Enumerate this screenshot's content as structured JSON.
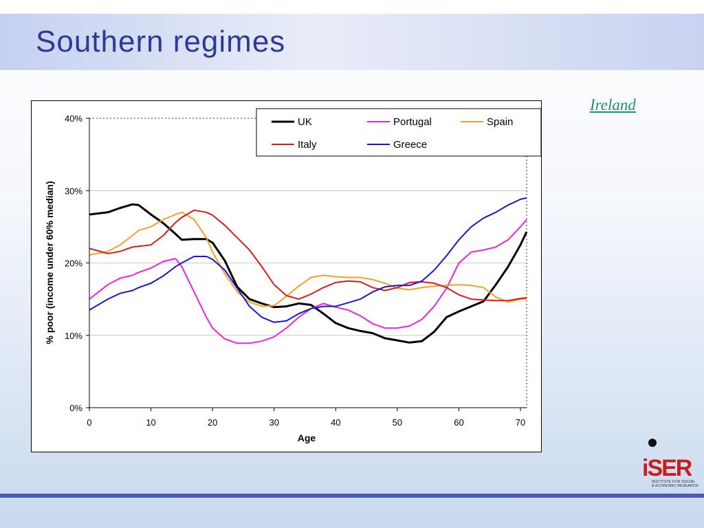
{
  "slide": {
    "title": "Southern regimes",
    "link_label": "Ireland"
  },
  "colors": {
    "UK": "#000000",
    "Portugal": "#ee22dd",
    "Spain": "#f5a020",
    "Italy": "#e01818",
    "Greece": "#1818c8"
  },
  "logo": {
    "wordmark": "iSER",
    "caption1": "INSTITUTE FOR SOCIAL",
    "caption2": "& ECONOMIC RESEARCH"
  },
  "chart_data": {
    "type": "line",
    "xlabel": "Age",
    "ylabel": "% poor (income under 60% median)",
    "xlim": [
      0,
      71
    ],
    "ylim": [
      0,
      40
    ],
    "x_ticks": [
      0,
      10,
      20,
      30,
      40,
      50,
      60,
      70
    ],
    "y_ticks": [
      0,
      10,
      20,
      30,
      40
    ],
    "y_tick_labels": [
      "0%",
      "10%",
      "20%",
      "30%",
      "40%"
    ],
    "grid": "horizontal",
    "legend_position": "top-right",
    "x": [
      0,
      3,
      5,
      7,
      8,
      10,
      12,
      14,
      15,
      17,
      19,
      20,
      22,
      24,
      26,
      28,
      30,
      32,
      34,
      36,
      38,
      40,
      42,
      44,
      46,
      48,
      50,
      52,
      54,
      56,
      58,
      60,
      62,
      64,
      66,
      68,
      70,
      71
    ],
    "series": [
      {
        "name": "UK",
        "values": [
          26.7,
          27.0,
          27.6,
          28.1,
          28.0,
          26.7,
          25.5,
          24.0,
          23.2,
          23.3,
          23.3,
          22.8,
          20.3,
          16.7,
          15.0,
          14.4,
          13.9,
          14.0,
          14.4,
          14.2,
          13.0,
          11.7,
          11.0,
          10.6,
          10.3,
          9.6,
          9.3,
          9.0,
          9.2,
          10.5,
          12.5,
          13.3,
          14.0,
          14.7,
          17.0,
          19.5,
          22.5,
          24.3
        ]
      },
      {
        "name": "Portugal",
        "values": [
          15.0,
          17.0,
          17.9,
          18.3,
          18.7,
          19.3,
          20.2,
          20.6,
          19.5,
          16.0,
          12.5,
          11.0,
          9.5,
          8.9,
          8.9,
          9.2,
          9.8,
          11.0,
          12.5,
          13.7,
          14.4,
          13.9,
          13.5,
          12.7,
          11.6,
          11.0,
          11.0,
          11.3,
          12.2,
          14.0,
          16.5,
          20.0,
          21.5,
          21.8,
          22.2,
          23.2,
          25.0,
          26.0
        ]
      },
      {
        "name": "Spain",
        "values": [
          21.1,
          21.6,
          22.5,
          23.8,
          24.5,
          25.0,
          26.0,
          26.7,
          27.0,
          26.0,
          23.5,
          21.5,
          18.5,
          16.0,
          14.6,
          14.0,
          14.1,
          15.4,
          16.8,
          18.0,
          18.3,
          18.1,
          18.0,
          18.0,
          17.7,
          17.2,
          16.5,
          16.3,
          16.6,
          16.8,
          16.9,
          17.0,
          16.9,
          16.6,
          15.3,
          14.6,
          15.0,
          15.0
        ]
      },
      {
        "name": "Italy",
        "values": [
          22.0,
          21.3,
          21.6,
          22.2,
          22.3,
          22.5,
          23.8,
          25.6,
          26.3,
          27.3,
          27.0,
          26.6,
          25.2,
          23.5,
          21.8,
          19.5,
          17.0,
          15.5,
          15.0,
          15.7,
          16.6,
          17.3,
          17.5,
          17.4,
          16.6,
          16.2,
          16.6,
          17.3,
          17.4,
          17.2,
          16.6,
          15.6,
          15.0,
          14.9,
          14.8,
          14.8,
          15.1,
          15.2
        ]
      },
      {
        "name": "Greece",
        "values": [
          13.5,
          15.0,
          15.8,
          16.2,
          16.6,
          17.2,
          18.2,
          19.5,
          20.0,
          20.9,
          20.9,
          20.5,
          19.0,
          16.5,
          14.0,
          12.5,
          11.8,
          12.0,
          13.0,
          13.7,
          14.0,
          14.0,
          14.5,
          15.0,
          16.0,
          16.7,
          16.9,
          16.9,
          17.5,
          19.0,
          21.0,
          23.2,
          25.0,
          26.2,
          27.0,
          28.0,
          28.8,
          29.0
        ]
      }
    ]
  }
}
